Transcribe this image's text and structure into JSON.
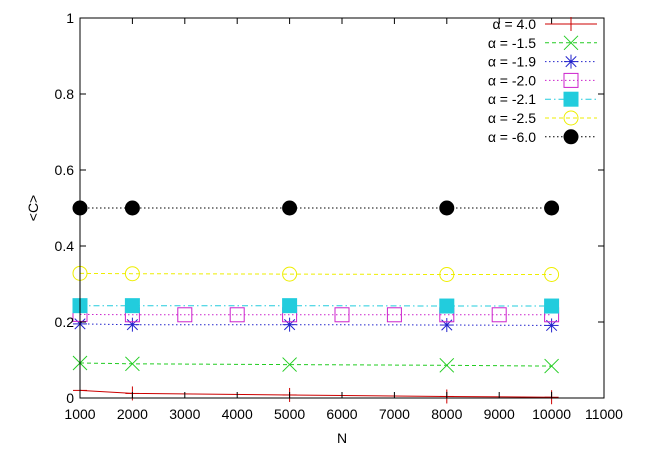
{
  "chart_data": {
    "type": "line",
    "xlabel": "N",
    "ylabel": "<C>",
    "xlim": [
      1000,
      11000
    ],
    "ylim": [
      0,
      1
    ],
    "xticks": [
      1000,
      2000,
      3000,
      4000,
      5000,
      6000,
      7000,
      8000,
      9000,
      10000,
      11000
    ],
    "yticks": [
      0,
      0.2,
      0.4,
      0.6,
      0.8,
      1
    ],
    "ytick_labels": [
      "0",
      "0.2",
      "0.4",
      "0.6",
      "0.8",
      "1"
    ],
    "grid": false,
    "legend_position": "top-right",
    "series": [
      {
        "name": "α = 4.0",
        "color": "#cc0000",
        "marker": "plus",
        "dash": "solid",
        "x": [
          1000,
          2000,
          5000,
          8000,
          10000
        ],
        "y": [
          0.02,
          0.012,
          0.008,
          0.004,
          0.002
        ]
      },
      {
        "name": "α = -1.5",
        "color": "#22cc22",
        "marker": "x",
        "dash": "dashed",
        "x": [
          1000,
          2000,
          5000,
          8000,
          10000
        ],
        "y": [
          0.092,
          0.09,
          0.088,
          0.086,
          0.084
        ]
      },
      {
        "name": "α = -1.9",
        "color": "#2222cc",
        "marker": "star",
        "dash": "dotted",
        "x": [
          1000,
          2000,
          5000,
          8000,
          10000
        ],
        "y": [
          0.195,
          0.193,
          0.193,
          0.192,
          0.191
        ]
      },
      {
        "name": "α = -2.0",
        "color": "#cc22cc",
        "marker": "open-square",
        "dash": "dotted",
        "x": [
          1000,
          2000,
          3000,
          4000,
          5000,
          6000,
          7000,
          8000,
          9000,
          10000
        ],
        "y": [
          0.22,
          0.219,
          0.219,
          0.219,
          0.219,
          0.219,
          0.219,
          0.219,
          0.219,
          0.219
        ]
      },
      {
        "name": "α = -2.1",
        "color": "#22ccdd",
        "marker": "filled-square",
        "dash": "dashdot",
        "x": [
          1000,
          2000,
          5000,
          8000,
          10000
        ],
        "y": [
          0.243,
          0.243,
          0.243,
          0.242,
          0.242
        ]
      },
      {
        "name": "α = -2.5",
        "color": "#eeee00",
        "marker": "open-circle",
        "dash": "dashed",
        "x": [
          1000,
          2000,
          5000,
          8000,
          10000
        ],
        "y": [
          0.328,
          0.327,
          0.326,
          0.325,
          0.325
        ]
      },
      {
        "name": "α = -6.0",
        "color": "#000000",
        "marker": "filled-circle",
        "dash": "dotted",
        "x": [
          1000,
          2000,
          5000,
          8000,
          10000
        ],
        "y": [
          0.5,
          0.5,
          0.5,
          0.5,
          0.5
        ]
      }
    ]
  }
}
